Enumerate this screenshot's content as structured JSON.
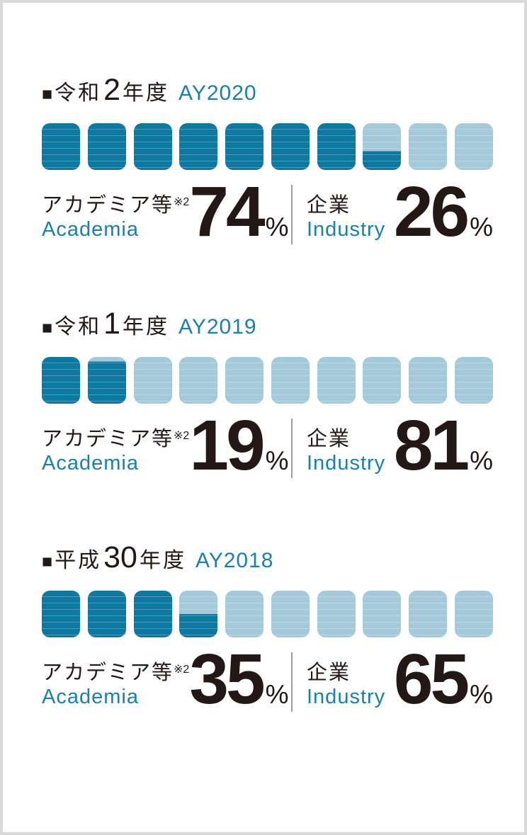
{
  "page": {
    "background": "#ffffff",
    "frame_border": "#d9d9d9"
  },
  "colors": {
    "ink": "#231815",
    "teal_text": "#1a80ac",
    "unit_dark": "#0e79a0",
    "unit_light": "#a4c9db",
    "unit_stripe": "rgba(255,255,255,0.25)",
    "divider": "#9c9c9c"
  },
  "chart_data": [
    {
      "type": "bar",
      "style": "unit-pictograph, 10 rounded squares per row, partial bottom-up fill",
      "title": "令和2年度 AY2020",
      "categories": [
        "アカデミア等 Academia",
        "企業 Industry"
      ],
      "values": [
        74,
        26
      ],
      "unit": "%",
      "units_total": 10,
      "units_filled": 7.4,
      "legend_position": "none",
      "grid": false
    },
    {
      "type": "bar",
      "style": "unit-pictograph, 10 rounded squares per row, partial bottom-up fill",
      "title": "令和1年度 AY2019",
      "categories": [
        "アカデミア等 Academia",
        "企業 Industry"
      ],
      "values": [
        19,
        81
      ],
      "unit": "%",
      "units_total": 10,
      "units_filled": 1.9,
      "legend_position": "none",
      "grid": false
    },
    {
      "type": "bar",
      "style": "unit-pictograph, 10 rounded squares per row, partial bottom-up fill",
      "title": "平成30年度 AY2018",
      "categories": [
        "アカデミア等 Academia",
        "企業 Industry"
      ],
      "values": [
        35,
        65
      ],
      "unit": "%",
      "units_total": 10,
      "units_filled": 3.5,
      "legend_position": "none",
      "grid": false
    }
  ],
  "sections": [
    {
      "marker": "■",
      "era_prefix": "令和",
      "era_number": "2",
      "era_suffix": "年度",
      "ay_label": "AY2020",
      "academia": {
        "label_jp": "アカデミア等",
        "label_note": "※2",
        "label_en": "Academia",
        "value": "74",
        "unit": "%"
      },
      "industry": {
        "label_jp": "企業",
        "label_en": "Industry",
        "value": "26",
        "unit": "%"
      },
      "units": [
        1,
        1,
        1,
        1,
        1,
        1,
        1,
        0.4,
        0,
        0
      ]
    },
    {
      "marker": "■",
      "era_prefix": "令和",
      "era_number": "1",
      "era_suffix": "年度",
      "ay_label": "AY2019",
      "academia": {
        "label_jp": "アカデミア等",
        "label_note": "※2",
        "label_en": "Academia",
        "value": "19",
        "unit": "%"
      },
      "industry": {
        "label_jp": "企業",
        "label_en": "Industry",
        "value": "81",
        "unit": "%"
      },
      "units": [
        1,
        0.9,
        0,
        0,
        0,
        0,
        0,
        0,
        0,
        0
      ]
    },
    {
      "marker": "■",
      "era_prefix": "平成",
      "era_number": "30",
      "era_suffix": "年度",
      "ay_label": "AY2018",
      "academia": {
        "label_jp": "アカデミア等",
        "label_note": "※2",
        "label_en": "Academia",
        "value": "35",
        "unit": "%"
      },
      "industry": {
        "label_jp": "企業",
        "label_en": "Industry",
        "value": "65",
        "unit": "%"
      },
      "units": [
        1,
        1,
        1,
        0.5,
        0,
        0,
        0,
        0,
        0,
        0
      ]
    }
  ]
}
